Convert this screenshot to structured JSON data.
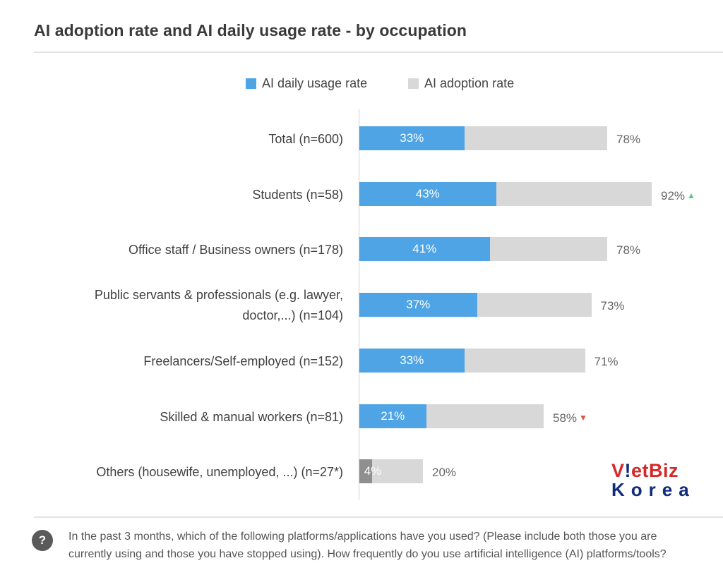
{
  "chart_data": {
    "type": "bar",
    "orientation": "horizontal",
    "title": "AI adoption rate and AI daily usage rate - by occupation",
    "categories": [
      "Total (n=600)",
      "Students (n=58)",
      "Office staff / Business owners (n=178)",
      "Public servants & professionals (e.g. lawyer, doctor,...) (n=104)",
      "Freelancers/Self-employed (n=152)",
      "Skilled & manual workers (n=81)",
      "Others (housewife, unemployed, ...) (n=27*)"
    ],
    "label_lines": [
      [
        "Total (n=600)"
      ],
      [
        "Students (n=58)"
      ],
      [
        "Office staff / Business owners (n=178)"
      ],
      [
        "Public servants & professionals (e.g. lawyer,",
        "doctor,...) (n=104)"
      ],
      [
        "Freelancers/Self-employed (n=152)"
      ],
      [
        "Skilled & manual workers (n=81)"
      ],
      [
        "Others (housewife, unemployed, ...) (n=27*)"
      ]
    ],
    "series": [
      {
        "name": "AI daily usage rate",
        "color": "#4ea4e4",
        "values": [
          33,
          43,
          41,
          37,
          33,
          21,
          4
        ],
        "labels": [
          "33%",
          "43%",
          "41%",
          "37%",
          "33%",
          "21%",
          "4%"
        ]
      },
      {
        "name": "AI adoption rate",
        "color": "#d8d8d8",
        "values": [
          78,
          92,
          78,
          73,
          71,
          58,
          20
        ],
        "labels": [
          "78%",
          "92%",
          "78%",
          "73%",
          "71%",
          "58%",
          "20%"
        ]
      }
    ],
    "significance": [
      null,
      "up",
      null,
      null,
      null,
      "down",
      null
    ],
    "significance_colors": {
      "up": "#5cc48a",
      "down": "#e0533f"
    },
    "low_base_color": "#8f8f8f",
    "xlim": [
      0,
      100
    ],
    "legend_position": "top"
  },
  "legend": {
    "items": [
      {
        "label": "AI daily usage rate",
        "color": "#4ea4e4"
      },
      {
        "label": "AI adoption rate",
        "color": "#d8d8d8"
      }
    ]
  },
  "footer": {
    "icon": "question-icon",
    "icon_glyph": "?",
    "note": "In the past 3 months, which of the following platforms/applications have you used? (Please include both those you are currently using and those you have stopped using). How frequently do you use artificial intelligence (AI) platforms/tools?"
  },
  "logo": {
    "top_text": "VietBiz",
    "bottom_text": "Korea",
    "top_color": "#d62828",
    "bottom_color": "#0f2b7a"
  }
}
